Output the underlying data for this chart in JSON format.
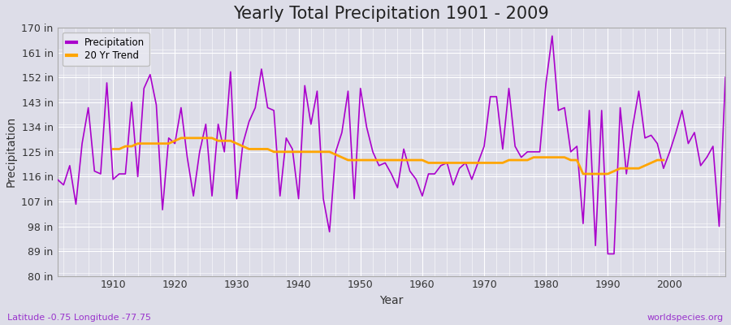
{
  "title": "Yearly Total Precipitation 1901 - 2009",
  "xlabel": "Year",
  "ylabel": "Precipitation",
  "subtitle_left": "Latitude -0.75 Longitude -77.75",
  "subtitle_right": "worldspecies.org",
  "years": [
    1901,
    1902,
    1903,
    1904,
    1905,
    1906,
    1907,
    1908,
    1909,
    1910,
    1911,
    1912,
    1913,
    1914,
    1915,
    1916,
    1917,
    1918,
    1919,
    1920,
    1921,
    1922,
    1923,
    1924,
    1925,
    1926,
    1927,
    1928,
    1929,
    1930,
    1931,
    1932,
    1933,
    1934,
    1935,
    1936,
    1937,
    1938,
    1939,
    1940,
    1941,
    1942,
    1943,
    1944,
    1945,
    1946,
    1947,
    1948,
    1949,
    1950,
    1951,
    1952,
    1953,
    1954,
    1955,
    1956,
    1957,
    1958,
    1959,
    1960,
    1961,
    1962,
    1963,
    1964,
    1965,
    1966,
    1967,
    1968,
    1969,
    1970,
    1971,
    1972,
    1973,
    1974,
    1975,
    1976,
    1977,
    1978,
    1979,
    1980,
    1981,
    1982,
    1983,
    1984,
    1985,
    1986,
    1987,
    1988,
    1989,
    1990,
    1991,
    1992,
    1993,
    1994,
    1995,
    1996,
    1997,
    1998,
    1999,
    2000,
    2001,
    2002,
    2003,
    2004,
    2005,
    2006,
    2007,
    2008,
    2009
  ],
  "precip": [
    115,
    113,
    120,
    106,
    128,
    141,
    118,
    117,
    150,
    115,
    117,
    117,
    143,
    116,
    148,
    153,
    142,
    104,
    130,
    128,
    141,
    123,
    109,
    125,
    135,
    109,
    135,
    125,
    154,
    108,
    128,
    136,
    141,
    155,
    141,
    140,
    109,
    130,
    126,
    108,
    149,
    135,
    147,
    108,
    96,
    125,
    132,
    147,
    108,
    148,
    134,
    125,
    120,
    121,
    117,
    112,
    126,
    118,
    115,
    109,
    117,
    117,
    120,
    121,
    113,
    119,
    121,
    115,
    121,
    127,
    145,
    145,
    126,
    148,
    127,
    123,
    125,
    125,
    125,
    150,
    167,
    140,
    141,
    125,
    127,
    99,
    140,
    91,
    140,
    88,
    88,
    141,
    117,
    134,
    147,
    130,
    131,
    128,
    119,
    125,
    132,
    140,
    128,
    132,
    120,
    123,
    127,
    98,
    152
  ],
  "trend": [
    null,
    null,
    null,
    null,
    null,
    null,
    null,
    null,
    null,
    126,
    126,
    127,
    127,
    128,
    128,
    128,
    128,
    128,
    128,
    129,
    130,
    130,
    130,
    130,
    130,
    130,
    129,
    129,
    129,
    128,
    127,
    126,
    126,
    126,
    126,
    125,
    125,
    125,
    125,
    125,
    125,
    125,
    125,
    125,
    125,
    124,
    123,
    122,
    122,
    122,
    122,
    122,
    122,
    122,
    122,
    122,
    122,
    122,
    122,
    122,
    121,
    121,
    121,
    121,
    121,
    121,
    121,
    121,
    121,
    121,
    121,
    121,
    121,
    122,
    122,
    122,
    122,
    123,
    123,
    123,
    123,
    123,
    123,
    122,
    122,
    117,
    117,
    117,
    117,
    117,
    118,
    119,
    119,
    119,
    119,
    120,
    121,
    122,
    122,
    null
  ],
  "ylim": [
    80,
    170
  ],
  "yticks": [
    80,
    89,
    98,
    107,
    116,
    125,
    134,
    143,
    152,
    161,
    170
  ],
  "ytick_labels": [
    "80 in",
    "89 in",
    "98 in",
    "107 in",
    "116 in",
    "125 in",
    "134 in",
    "143 in",
    "152 in",
    "161 in",
    "170 in"
  ],
  "xlim": [
    1901,
    2009
  ],
  "xticks": [
    1910,
    1920,
    1930,
    1940,
    1950,
    1960,
    1970,
    1980,
    1990,
    2000
  ],
  "precip_color": "#aa00cc",
  "trend_color": "#FFA500",
  "bg_color": "#dddde8",
  "plot_bg_color": "#dddde8",
  "grid_color": "#ffffff",
  "title_fontsize": 15,
  "axis_fontsize": 10,
  "tick_fontsize": 9,
  "subtitle_color": "#9933cc"
}
